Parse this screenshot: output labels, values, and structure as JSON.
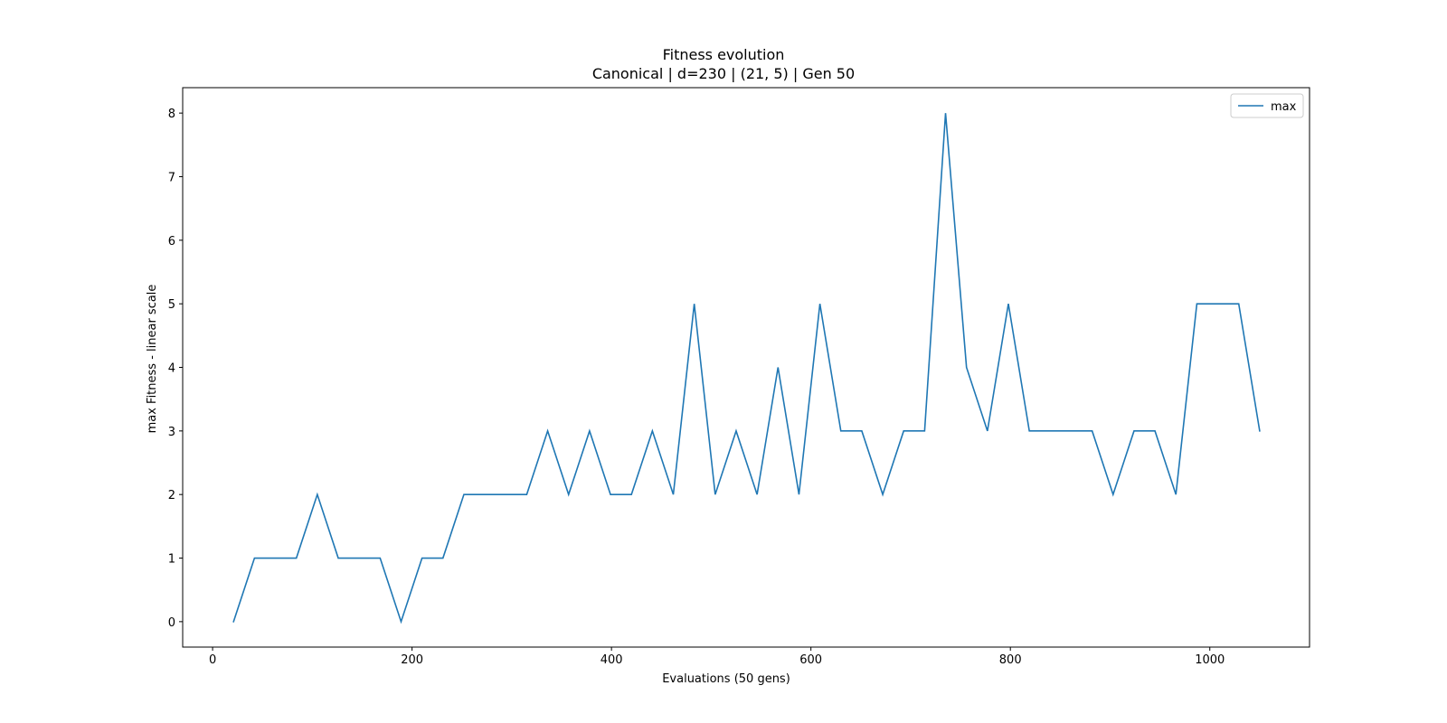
{
  "chart_data": {
    "type": "line",
    "title": "Fitness evolution",
    "subtitle": "Canonical | d=230 | (21, 5) | Gen 50",
    "xlabel": "Evaluations (50 gens)",
    "ylabel": "max Fitness - linear scale",
    "xlim": [
      -30,
      1100
    ],
    "ylim": [
      -0.4,
      8.4
    ],
    "xticks": [
      0,
      200,
      400,
      600,
      800,
      1000
    ],
    "yticks": [
      0,
      1,
      2,
      3,
      4,
      5,
      6,
      7,
      8
    ],
    "grid": false,
    "legend": {
      "location": "top-right"
    },
    "series": [
      {
        "name": "max",
        "color": "#1f77b4",
        "x": [
          21,
          42,
          63,
          84,
          105,
          126,
          147,
          168,
          189,
          210,
          231,
          252,
          273,
          294,
          315,
          336,
          357,
          378,
          399,
          420,
          441,
          462,
          483,
          504,
          525,
          546,
          567,
          588,
          609,
          630,
          651,
          672,
          693,
          714,
          735,
          756,
          777,
          798,
          819,
          840,
          861,
          882,
          903,
          924,
          945,
          966,
          987,
          1008,
          1029,
          1050
        ],
        "values": [
          0,
          1,
          1,
          1,
          2,
          1,
          1,
          1,
          0,
          1,
          1,
          2,
          2,
          2,
          2,
          3,
          2,
          3,
          2,
          2,
          3,
          2,
          5,
          2,
          3,
          2,
          4,
          2,
          5,
          3,
          3,
          2,
          3,
          3,
          8,
          4,
          3,
          5,
          3,
          3,
          3,
          3,
          2,
          3,
          3,
          2,
          5,
          5,
          5,
          3
        ]
      }
    ]
  }
}
